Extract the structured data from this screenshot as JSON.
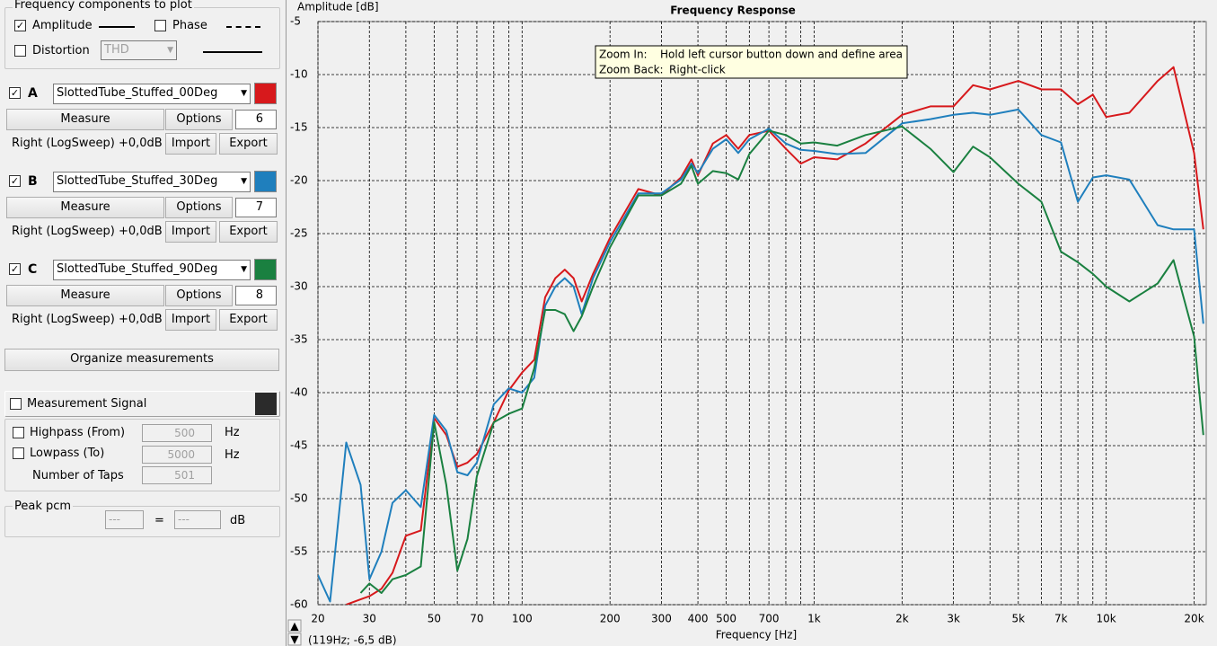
{
  "panel": {
    "components": {
      "title": "Frequency components to plot",
      "amplitude": "Amplitude",
      "phase": "Phase",
      "distortion": "Distortion",
      "distortion_type": "THD"
    },
    "measurements": [
      {
        "letter": "A",
        "measure": "Measure",
        "options": "Options",
        "smoothing": 6,
        "info": "Right (LogSweep) +0,0dB",
        "import": "Import",
        "export": "Export"
      },
      {
        "letter": "B",
        "measure": "Measure",
        "options": "Options",
        "smoothing": 7,
        "info": "Right (LogSweep) +0,0dB",
        "import": "Import",
        "export": "Export"
      },
      {
        "letter": "C",
        "measure": "Measure",
        "options": "Options",
        "smoothing": 8,
        "info": "Right (LogSweep) +0,0dB",
        "import": "Import",
        "export": "Export"
      }
    ],
    "organize": "Organize measurements",
    "signal": {
      "label": "Measurement Signal",
      "highpass": "Highpass (From)",
      "highpass_value": 500,
      "lowpass": "Lowpass (To)",
      "lowpass_value": 5000,
      "unit": "Hz",
      "taps": "Number of Taps",
      "taps_value": 501
    },
    "peak": {
      "title": "Peak pcm",
      "left": "---",
      "equals": "=",
      "right": "---",
      "unit": "dB"
    }
  },
  "chart_data": {
    "type": "line",
    "title": "Frequency Response",
    "y_label": "Amplitude [dB]",
    "x_label": "Frequency [Hz]",
    "tooltip": {
      "zoom_in": "Zoom In:",
      "zoom_in_text": "Hold left cursor button down and define area",
      "zoom_back": "Zoom Back:",
      "zoom_back_text": "Right-click"
    },
    "status": "(119Hz; -6,5 dB)",
    "x_scale": "log",
    "grid": true,
    "xlim": [
      20,
      22000
    ],
    "ylim": [
      -60,
      -5
    ],
    "xticks": [
      20,
      30,
      50,
      70,
      100,
      200,
      300,
      400,
      500,
      700,
      {
        "value": 1000,
        "label": "1k"
      },
      {
        "value": 2000,
        "label": "2k"
      },
      {
        "value": 3000,
        "label": "3k"
      },
      {
        "value": 5000,
        "label": "5k"
      },
      {
        "value": 7000,
        "label": "7k"
      },
      {
        "value": 10000,
        "label": "10k"
      },
      {
        "value": 20000,
        "label": "20k"
      }
    ],
    "xminor": [
      40,
      60,
      80,
      90,
      600,
      800,
      900,
      4000,
      6000,
      8000,
      9000
    ],
    "yticks": [
      -5,
      -10,
      -15,
      -20,
      -25,
      -30,
      -35,
      -40,
      -45,
      -50,
      -55,
      -60
    ],
    "x": [
      20,
      22,
      25,
      28,
      30,
      33,
      36,
      40,
      45,
      50,
      55,
      60,
      65,
      70,
      80,
      90,
      100,
      110,
      120,
      130,
      140,
      150,
      160,
      175,
      200,
      250,
      300,
      350,
      380,
      400,
      450,
      500,
      550,
      600,
      700,
      800,
      900,
      1000,
      1200,
      1500,
      2000,
      2500,
      3000,
      3500,
      4000,
      5000,
      6000,
      7000,
      8000,
      9000,
      10000,
      12000,
      15000,
      17000,
      20000,
      21500
    ],
    "series": [
      {
        "name": "SlottedTube_Stuffed_00Deg",
        "color": "#d7191c",
        "values": [
          null,
          null,
          -60,
          -59.5,
          -59.2,
          -58.5,
          -57,
          -53.5,
          -53,
          -42.4,
          -44,
          -47,
          -46.6,
          -45.8,
          -42.8,
          -39.8,
          -38.1,
          -36.9,
          -31,
          -29.2,
          -28.4,
          -29.2,
          -31.4,
          -28.8,
          -25.4,
          -20.8,
          -21.4,
          -19.7,
          -18,
          -19.5,
          -16.5,
          -15.7,
          -17,
          -15.7,
          -15.3,
          -17,
          -18.4,
          -17.8,
          -18,
          -16.5,
          -13.8,
          -13,
          -13,
          -11,
          -11.4,
          -10.6,
          -11.4,
          -11.4,
          -12.8,
          -11.9,
          -14,
          -13.6,
          -10.6,
          -9.3,
          -17.4,
          -24.6
        ]
      },
      {
        "name": "SlottedTube_Stuffed_30Deg",
        "color": "#1f7fbd",
        "values": [
          -57.2,
          -59.7,
          -44.7,
          -48.7,
          -57.6,
          -55,
          -50.4,
          -49.2,
          -50.8,
          -42.1,
          -43.6,
          -47.5,
          -47.8,
          -46.6,
          -41.1,
          -39.6,
          -40,
          -38.6,
          -31.8,
          -30,
          -29.2,
          -30,
          -32.6,
          -29.2,
          -25.8,
          -21.2,
          -21.2,
          -19.9,
          -18.4,
          -19.3,
          -17,
          -16.1,
          -17.4,
          -16.1,
          -15.1,
          -16.5,
          -17.1,
          -17.2,
          -17.5,
          -17.4,
          -14.6,
          -14.2,
          -13.8,
          -13.6,
          -13.8,
          -13.3,
          -15.7,
          -16.4,
          -22,
          -19.7,
          -19.5,
          -19.9,
          -24.2,
          -24.6,
          -24.6,
          -33.5
        ]
      },
      {
        "name": "SlottedTube_Stuffed_90Deg",
        "color": "#1a8040",
        "values": [
          null,
          null,
          null,
          -58.9,
          -58,
          -58.9,
          -57.6,
          -57.2,
          -56.4,
          -42.8,
          -48.7,
          -56.8,
          -53.8,
          -47.9,
          -42.8,
          -42,
          -41.5,
          -37.7,
          -32.2,
          -32.2,
          -32.6,
          -34.2,
          -32.8,
          -30,
          -26.3,
          -21.4,
          -21.4,
          -20.3,
          -18.6,
          -20.3,
          -19.1,
          -19.3,
          -19.9,
          -17.5,
          -15.3,
          -15.7,
          -16.5,
          -16.4,
          -16.7,
          -15.7,
          -14.9,
          -17,
          -19.2,
          -16.8,
          -17.8,
          -20.3,
          -22,
          -26.7,
          -27.7,
          -28.8,
          -30,
          -31.4,
          -29.7,
          -27.5,
          -34.7,
          -44
        ]
      }
    ]
  }
}
